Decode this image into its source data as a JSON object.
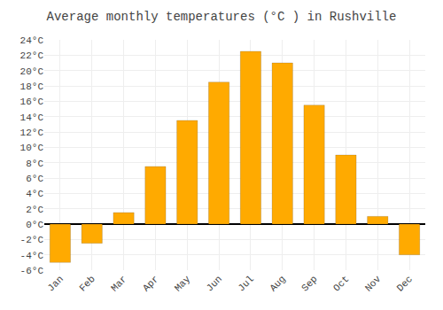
{
  "chart_data": {
    "type": "bar",
    "title": "Average monthly temperatures (°C ) in Rushville",
    "categories": [
      "Jan",
      "Feb",
      "Mar",
      "Apr",
      "May",
      "Jun",
      "Jul",
      "Aug",
      "Sep",
      "Oct",
      "Nov",
      "Dec"
    ],
    "values": [
      -5.0,
      -2.5,
      1.5,
      7.5,
      13.5,
      18.5,
      22.5,
      21.0,
      15.5,
      9.0,
      1.0,
      -4.0
    ],
    "color": "#FFAA00",
    "ylim": [
      -6,
      24
    ],
    "yticks": [
      {
        "value": -6,
        "label": "-6°C"
      },
      {
        "value": -4,
        "label": "-4°C"
      },
      {
        "value": -2,
        "label": "-2°C"
      },
      {
        "value": 0,
        "label": "0°C"
      },
      {
        "value": 2,
        "label": "2°C"
      },
      {
        "value": 4,
        "label": "4°C"
      },
      {
        "value": 6,
        "label": "6°C"
      },
      {
        "value": 8,
        "label": "8°C"
      },
      {
        "value": 10,
        "label": "10°C"
      },
      {
        "value": 12,
        "label": "12°C"
      },
      {
        "value": 14,
        "label": "14°C"
      },
      {
        "value": 16,
        "label": "16°C"
      },
      {
        "value": 18,
        "label": "18°C"
      },
      {
        "value": 20,
        "label": "20°C"
      },
      {
        "value": 22,
        "label": "22°C"
      },
      {
        "value": 24,
        "label": "24°C"
      }
    ],
    "grid": true
  }
}
